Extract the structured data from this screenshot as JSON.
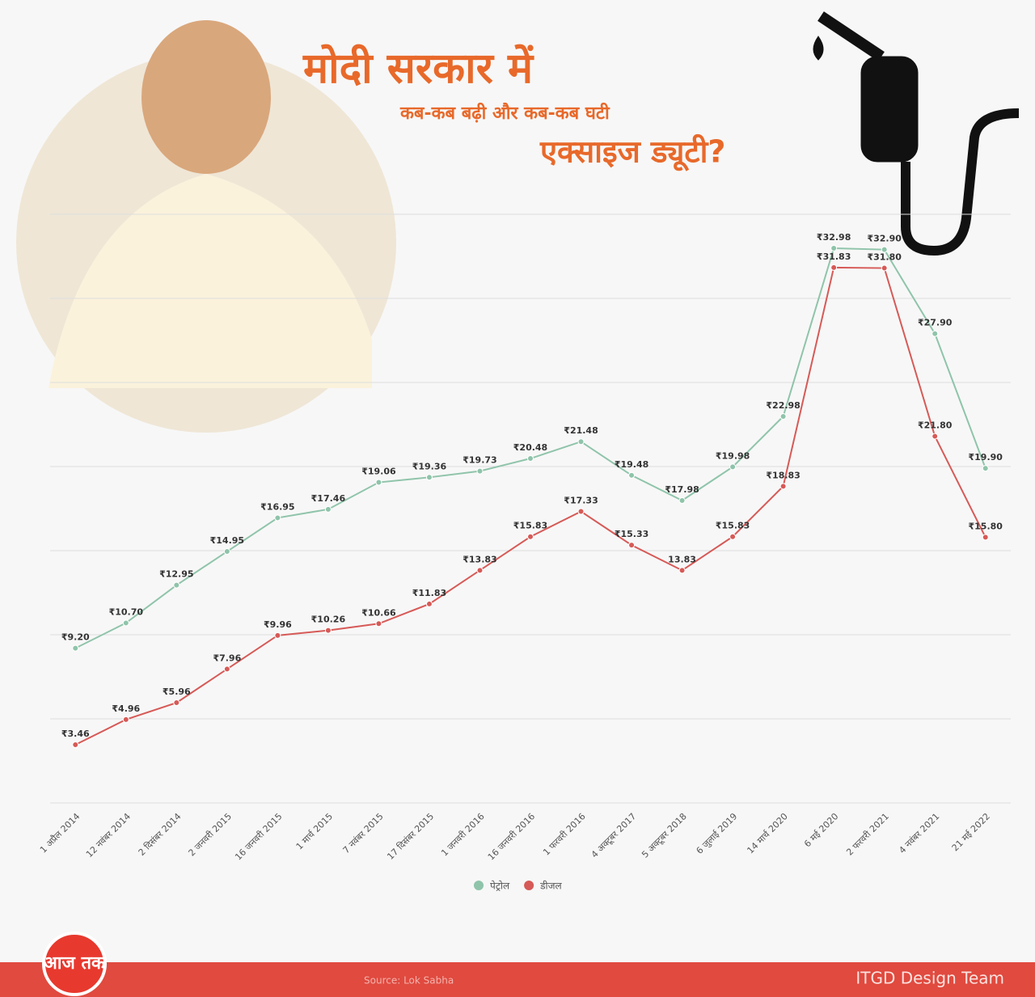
{
  "chart_data": {
    "type": "line",
    "title": "मोदी सरकार में",
    "subtitle": "कब-कब बढ़ी और कब-कब घटी",
    "subtitle2": "एक्साइज ड्यूटी?",
    "categories": [
      "1 अप्रैल 2014",
      "12 नवंबर 2014",
      "2 दिसंबर 2014",
      "2 जनवरी 2015",
      "16 जनवरी 2015",
      "1 मार्च 2015",
      "7 नवंबर 2015",
      "17 दिसंबर 2015",
      "1 जनवरी 2016",
      "16 जनवरी 2016",
      "1 फरवरी 2016",
      "4 अक्टूबर 2017",
      "5 अक्टूबर 2018",
      "6 जुलाई 2019",
      "14 मार्च 2020",
      "6 मई 2020",
      "2 फरवरी 2021",
      "4 नवंबर 2021",
      "21 मई 2022"
    ],
    "series": [
      {
        "name": "पेट्रोल",
        "color": "#8fc4aa",
        "values": [
          9.2,
          10.7,
          12.95,
          14.95,
          16.95,
          17.46,
          19.06,
          19.36,
          19.73,
          20.48,
          21.48,
          19.48,
          17.98,
          19.98,
          22.98,
          32.98,
          32.9,
          27.9,
          19.9
        ],
        "value_labels": [
          "₹9.20",
          "₹10.70",
          "₹12.95",
          "₹14.95",
          "₹16.95",
          "₹17.46",
          "₹19.06",
          "₹19.36",
          "₹19.73",
          "₹20.48",
          "₹21.48",
          "₹19.48",
          "₹17.98",
          "₹19.98",
          "₹22.98",
          "₹32.98",
          "₹32.90",
          "₹27.90",
          "₹19.90"
        ]
      },
      {
        "name": "डीजल",
        "color": "#d65a57",
        "values": [
          3.46,
          4.96,
          5.96,
          7.96,
          9.96,
          10.26,
          10.66,
          11.83,
          13.83,
          15.83,
          17.33,
          15.33,
          13.83,
          15.83,
          18.83,
          31.83,
          31.8,
          21.8,
          15.8
        ],
        "value_labels": [
          "₹3.46",
          "₹4.96",
          "₹5.96",
          "₹7.96",
          "₹9.96",
          "₹10.26",
          "₹10.66",
          "₹11.83",
          "₹13.83",
          "₹15.83",
          "₹17.33",
          "₹15.33",
          "13.83",
          "₹15.83",
          "₹18.83",
          "₹31.83",
          "₹31.80",
          "₹21.80",
          "₹15.80"
        ]
      }
    ],
    "ylim": [
      0,
      35
    ],
    "yticks": [
      0,
      5,
      10,
      15,
      20,
      25,
      30,
      35
    ],
    "grid": true,
    "source": "Source: Lok Sabha",
    "credit": "ITGD Design Team",
    "logo": "आज तक"
  }
}
